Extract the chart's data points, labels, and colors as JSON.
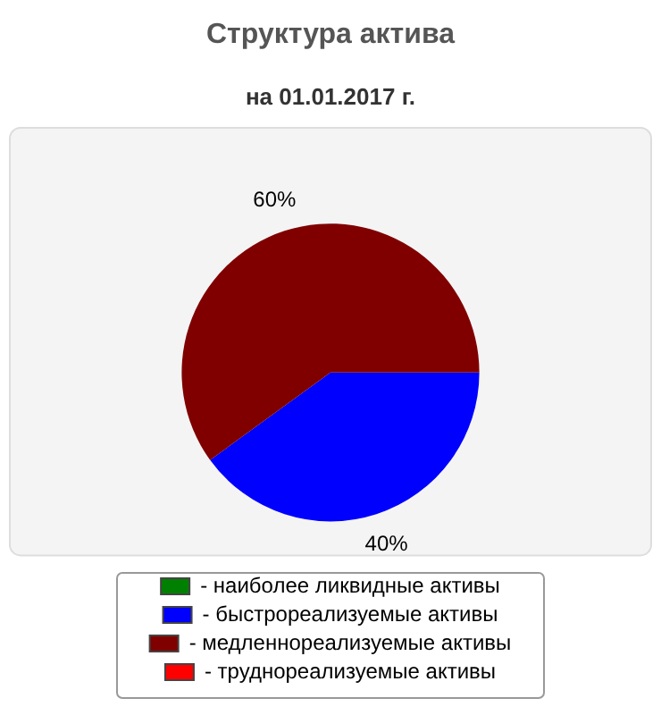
{
  "chart_data": {
    "type": "pie",
    "title": "Структура актива",
    "subtitle": "на 01.01.2017 г.",
    "categories": [
      "- наиболее ликвидные активы",
      "- быстрореализуемые активы",
      "- медленнореализуемые активы",
      "- труднореализуемые активы"
    ],
    "values": [
      0,
      40,
      60,
      0
    ],
    "colors": [
      "#008000",
      "#0000ff",
      "#800000",
      "#ff0000"
    ],
    "value_labels": [
      null,
      "40%",
      "60%",
      null
    ],
    "legend": "bottom"
  }
}
